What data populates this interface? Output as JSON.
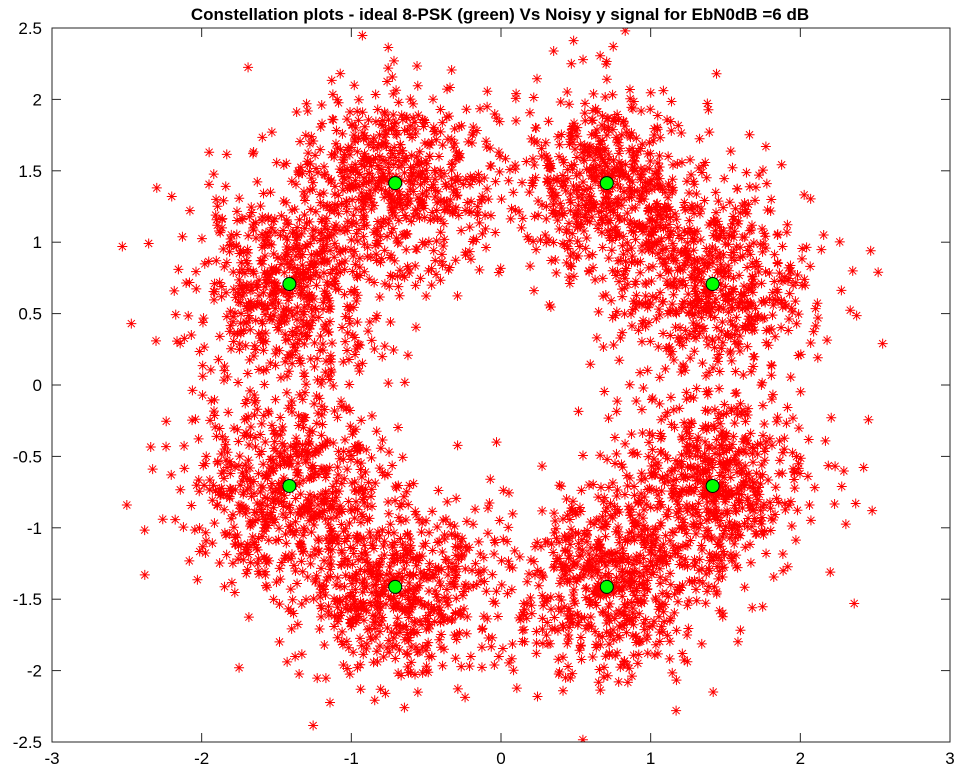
{
  "chart_data": {
    "type": "scatter",
    "title": "Constellation plots - ideal 8-PSK (green) Vs Noisy y signal for EbN0dB =6 dB",
    "xlabel": "",
    "ylabel": "",
    "xlim": [
      -3,
      3
    ],
    "ylim": [
      -2.5,
      2.5
    ],
    "xticks": [
      -3,
      -2,
      -1,
      0,
      1,
      2,
      3
    ],
    "yticks": [
      -2.5,
      -2,
      -1.5,
      -1,
      -0.5,
      0,
      0.5,
      1,
      1.5,
      2,
      2.5
    ],
    "xtick_labels": [
      "-3",
      "-2",
      "-1",
      "0",
      "1",
      "2",
      "3"
    ],
    "ytick_labels": [
      "-2.5",
      "-2",
      "-1.5",
      "-1",
      "-0.5",
      "0",
      "0.5",
      "1",
      "1.5",
      "2",
      "2.5"
    ],
    "grid": false,
    "series": [
      {
        "name": "Noisy y signal",
        "marker": "asterisk",
        "color": "#ff0000",
        "distribution": "gaussian-clusters",
        "cluster_centers": "same as ideal 8-PSK points",
        "noise_sigma": 0.33,
        "points_per_cluster": 600,
        "outlier_sample": {
          "x": [
            -2.53,
            -2.47,
            -2.3,
            -2.38,
            -2.5,
            2.55,
            2.52,
            2.47,
            2.48,
            0.83,
            0.75,
            2.37,
            1.44,
            -2.26,
            -2.2,
            0.47,
            -0.03,
            2.2,
            2.36,
            -1.95,
            -1.75,
            1.17
          ],
          "y": [
            0.97,
            0.43,
            1.38,
            -1.33,
            -0.84,
            0.29,
            0.79,
            0.94,
            -0.88,
            2.48,
            2.37,
            -0.83,
            2.18,
            -0.94,
            1.32,
            2.25,
            -0.4,
            -1.31,
            -1.53,
            1.63,
            -1.98,
            -2.28
          ]
        }
      },
      {
        "name": "ideal 8-PSK",
        "marker": "circle",
        "color": "#00ff00",
        "edge_color": "#000000",
        "x": [
          0.707,
          1.414,
          1.414,
          0.707,
          -0.707,
          -1.414,
          -1.414,
          -0.707
        ],
        "y": [
          1.414,
          0.707,
          -0.707,
          -1.414,
          -1.414,
          -0.707,
          0.707,
          1.414
        ]
      }
    ]
  }
}
